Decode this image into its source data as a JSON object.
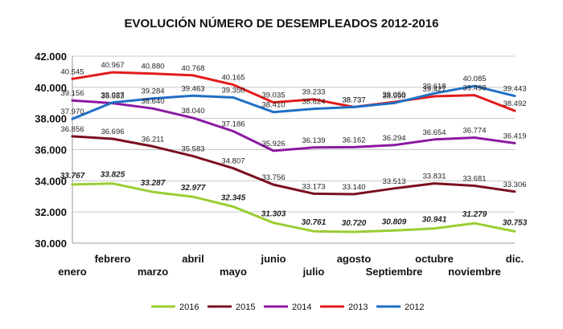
{
  "chart_data": {
    "type": "line",
    "title": "EVOLUCIÓN NÚMERO DE DESEMPLEADOS 2012-2016",
    "categories": [
      "enero",
      "febrero",
      "marzo",
      "abril",
      "mayo",
      "junio",
      "julio",
      "agosto",
      "Septiembre",
      "octubre",
      "noviembre",
      "dic."
    ],
    "y_ticks": [
      "30.000",
      "32.000",
      "34.000",
      "36.000",
      "38.000",
      "40.000",
      "42.000"
    ],
    "ylim": [
      30000,
      42000
    ],
    "grid": true,
    "legend_position": "bottom",
    "series": [
      {
        "name": "2016",
        "color": "#9acd32",
        "values": [
          33767,
          33825,
          33287,
          32977,
          32345,
          31303,
          30761,
          30720,
          30809,
          30941,
          31279,
          30753
        ],
        "labels": [
          "33.767",
          "33.825",
          "33.287",
          "32.977",
          "32.345",
          "31.303",
          "30.761",
          "30.720",
          "30.809",
          "30.941",
          "31.279",
          "30.753"
        ]
      },
      {
        "name": "2015",
        "color": "#7b1020",
        "values": [
          36856,
          36696,
          36211,
          35583,
          34807,
          33756,
          33173,
          33140,
          33513,
          33831,
          33681,
          33306
        ],
        "labels": [
          "36.856",
          "36.696",
          "36.211",
          "35.583",
          "34.807",
          "33.756",
          "33.173",
          "33.140",
          "33.513",
          "33.831",
          "33.681",
          "33.306"
        ]
      },
      {
        "name": "2014",
        "color": "#8b1aa0",
        "values": [
          39156,
          38983,
          38640,
          38040,
          37186,
          35926,
          36139,
          36162,
          36294,
          36654,
          36774,
          36419
        ],
        "labels": [
          "39.156",
          "38.983",
          "38.640",
          "38.040",
          "37.186",
          "35.926",
          "36.139",
          "36.162",
          "36.294",
          "36.654",
          "36.774",
          "36.419"
        ]
      },
      {
        "name": "2013",
        "color": "#e31b1b",
        "values": [
          40545,
          40967,
          40880,
          40768,
          40165,
          39035,
          39233,
          38737,
          39059,
          39427,
          39498,
          38492
        ],
        "labels": [
          "40.545",
          "40.967",
          "40.880",
          "40.768",
          "40.165",
          "39.035",
          "39.233",
          "38.737",
          "39.059",
          "39.427",
          "39.498",
          "38.492"
        ]
      },
      {
        "name": "2012",
        "color": "#1f6fc5",
        "values": [
          37970,
          39027,
          39284,
          39463,
          39350,
          38410,
          38624,
          38737,
          38990,
          39618,
          40085,
          39443
        ],
        "labels": [
          "37.970",
          "39.027",
          "39.284",
          "39.463",
          "39.350",
          "38.410",
          "38.624",
          "38.737",
          "38.990",
          "39.618",
          "40.085",
          "39.443"
        ]
      }
    ]
  }
}
